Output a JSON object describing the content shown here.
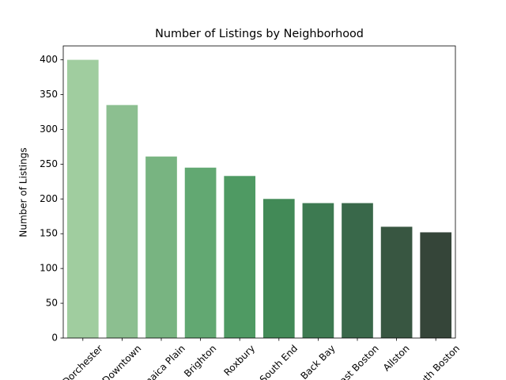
{
  "chart_data": {
    "type": "bar",
    "title": "Number of Listings by Neighborhood",
    "y_label": "Number of Listings",
    "categories": [
      "Dorchester",
      "Downtown",
      "Jamaica Plain",
      "Brighton",
      "Roxbury",
      "South End",
      "Back Bay",
      "East Boston",
      "Allston",
      "South Boston"
    ],
    "values": [
      400,
      335,
      261,
      245,
      233,
      200,
      194,
      194,
      160,
      152
    ],
    "colors": [
      "#a0cd9f",
      "#8cbf90",
      "#78b481",
      "#62a872",
      "#4f9a63",
      "#428a57",
      "#3d7a51",
      "#39684a",
      "#385641",
      "#354539"
    ],
    "ylim": [
      0,
      420
    ],
    "yticks": [
      0,
      50,
      100,
      150,
      200,
      250,
      300,
      350,
      400
    ],
    "grid": false
  }
}
